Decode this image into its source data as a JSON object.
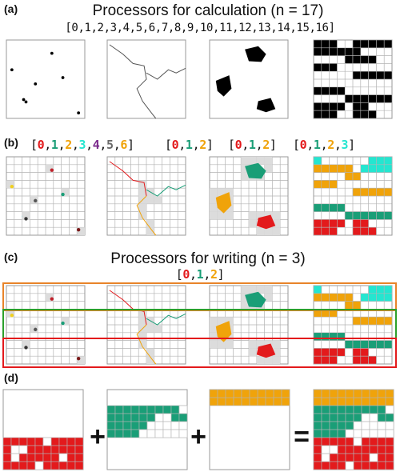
{
  "panel_a": {
    "label": "(a)",
    "title": "Processors for calculation (n = 17)",
    "indices": "[0,1,2,3,4,5,6,7,8,9,10,11,12,13,14,15,16]"
  },
  "panel_b": {
    "label": "(b)",
    "groups": [
      [
        "0",
        "1",
        "2",
        "3",
        "4",
        "5",
        "6"
      ],
      [
        "0",
        "1",
        "2"
      ],
      [
        "0",
        "1",
        "2"
      ],
      [
        "0",
        "1",
        "2",
        "3"
      ]
    ]
  },
  "panel_c": {
    "label": "(c)",
    "title": "Processors for writing (n = 3)",
    "indices": [
      "0",
      "1",
      "2"
    ]
  },
  "panel_d": {
    "label": "(d)",
    "plus1": "+",
    "plus2": "+",
    "equals": "="
  },
  "colors": {
    "p0": "#e31a1c",
    "p1": "#1a9e77",
    "p2": "#f0a30a",
    "p3": "#24e6d0",
    "p4": "#7b2a8c",
    "p5": "#6b6b6b",
    "p6": "#f0a30a",
    "grid": "#b4b4b4",
    "highlight": "#dcdcdc",
    "box_orange": "#e8842a",
    "box_green": "#2ca02c",
    "box_red": "#e31a1c"
  }
}
